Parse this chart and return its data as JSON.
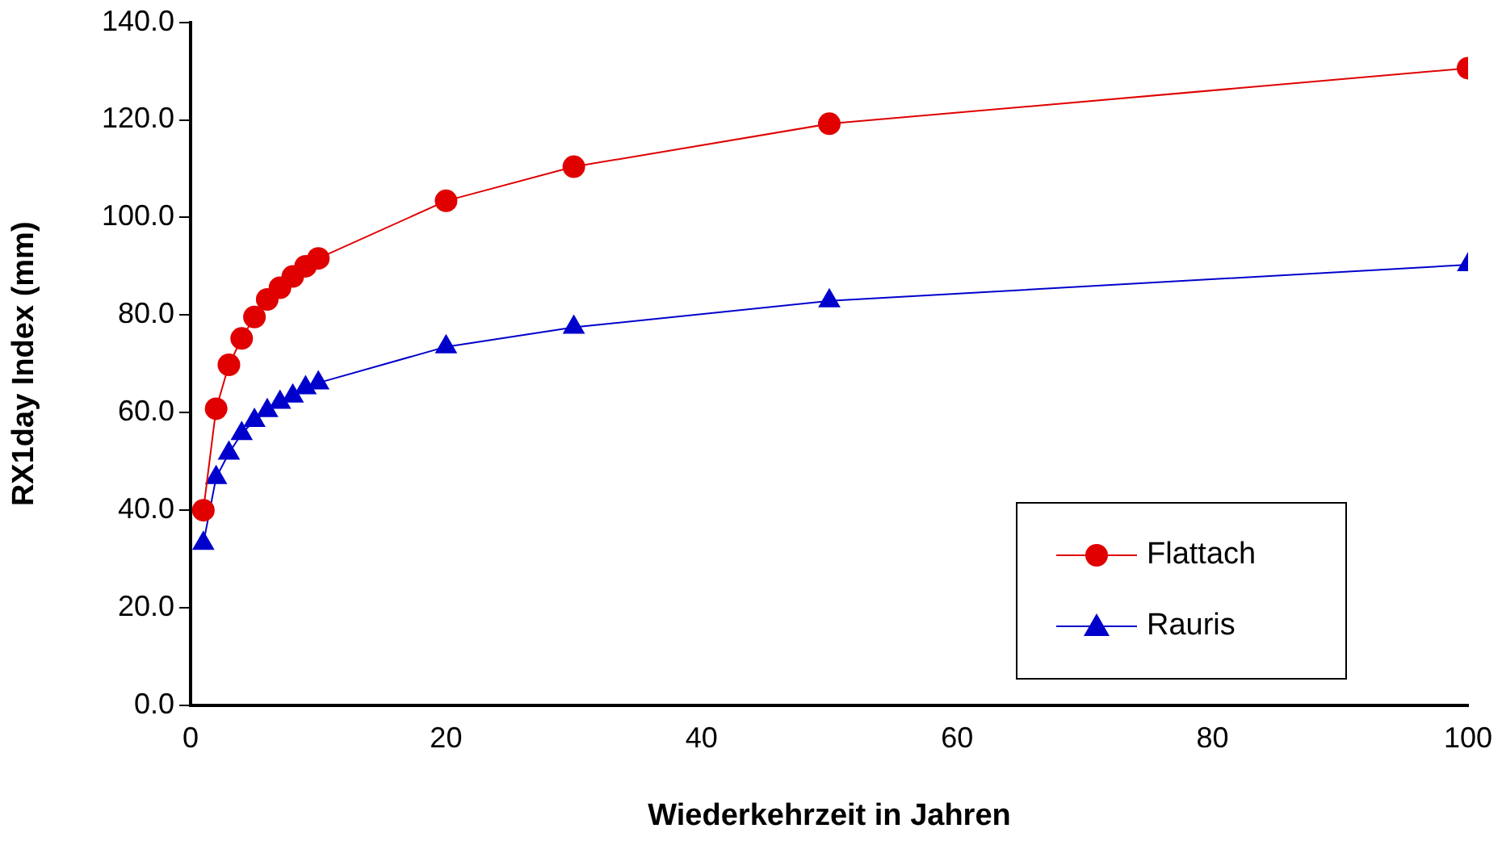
{
  "chart_data": {
    "type": "line",
    "xlabel": "Wiederkehrzeit in Jahren",
    "ylabel": "RX1day Index (mm)",
    "xlim": [
      0,
      100
    ],
    "xticks": [
      0,
      20,
      40,
      60,
      80,
      100
    ],
    "ylim": [
      0,
      140
    ],
    "yticks": [
      {
        "value": 0,
        "label": "0.0"
      },
      {
        "value": 20,
        "label": "20.0"
      },
      {
        "value": 40,
        "label": "40.0"
      },
      {
        "value": 60,
        "label": "60.0"
      },
      {
        "value": 80,
        "label": "80.0"
      },
      {
        "value": 100,
        "label": "100.0"
      },
      {
        "value": 120,
        "label": "120.0"
      },
      {
        "value": 140,
        "label": "140.0"
      }
    ],
    "grid": false,
    "legend": "bottom right",
    "line_style": "solid",
    "x": [
      1,
      2,
      3,
      4,
      5,
      6,
      7,
      8,
      9,
      10,
      20,
      30,
      50,
      100
    ],
    "series": [
      {
        "name": "Flattach",
        "color": "#e00000",
        "marker": "circle",
        "values": [
          40.0,
          60.8,
          69.8,
          75.2,
          79.6,
          83.2,
          85.6,
          87.9,
          90.0,
          91.6,
          103.4,
          110.4,
          119.2,
          130.6
        ]
      },
      {
        "name": "Rauris",
        "color": "#0000cc",
        "marker": "triangle",
        "values": [
          33.2,
          46.7,
          51.7,
          55.7,
          58.4,
          60.4,
          62.1,
          63.4,
          65.1,
          66.1,
          73.5,
          77.5,
          82.9,
          90.3
        ]
      }
    ]
  }
}
